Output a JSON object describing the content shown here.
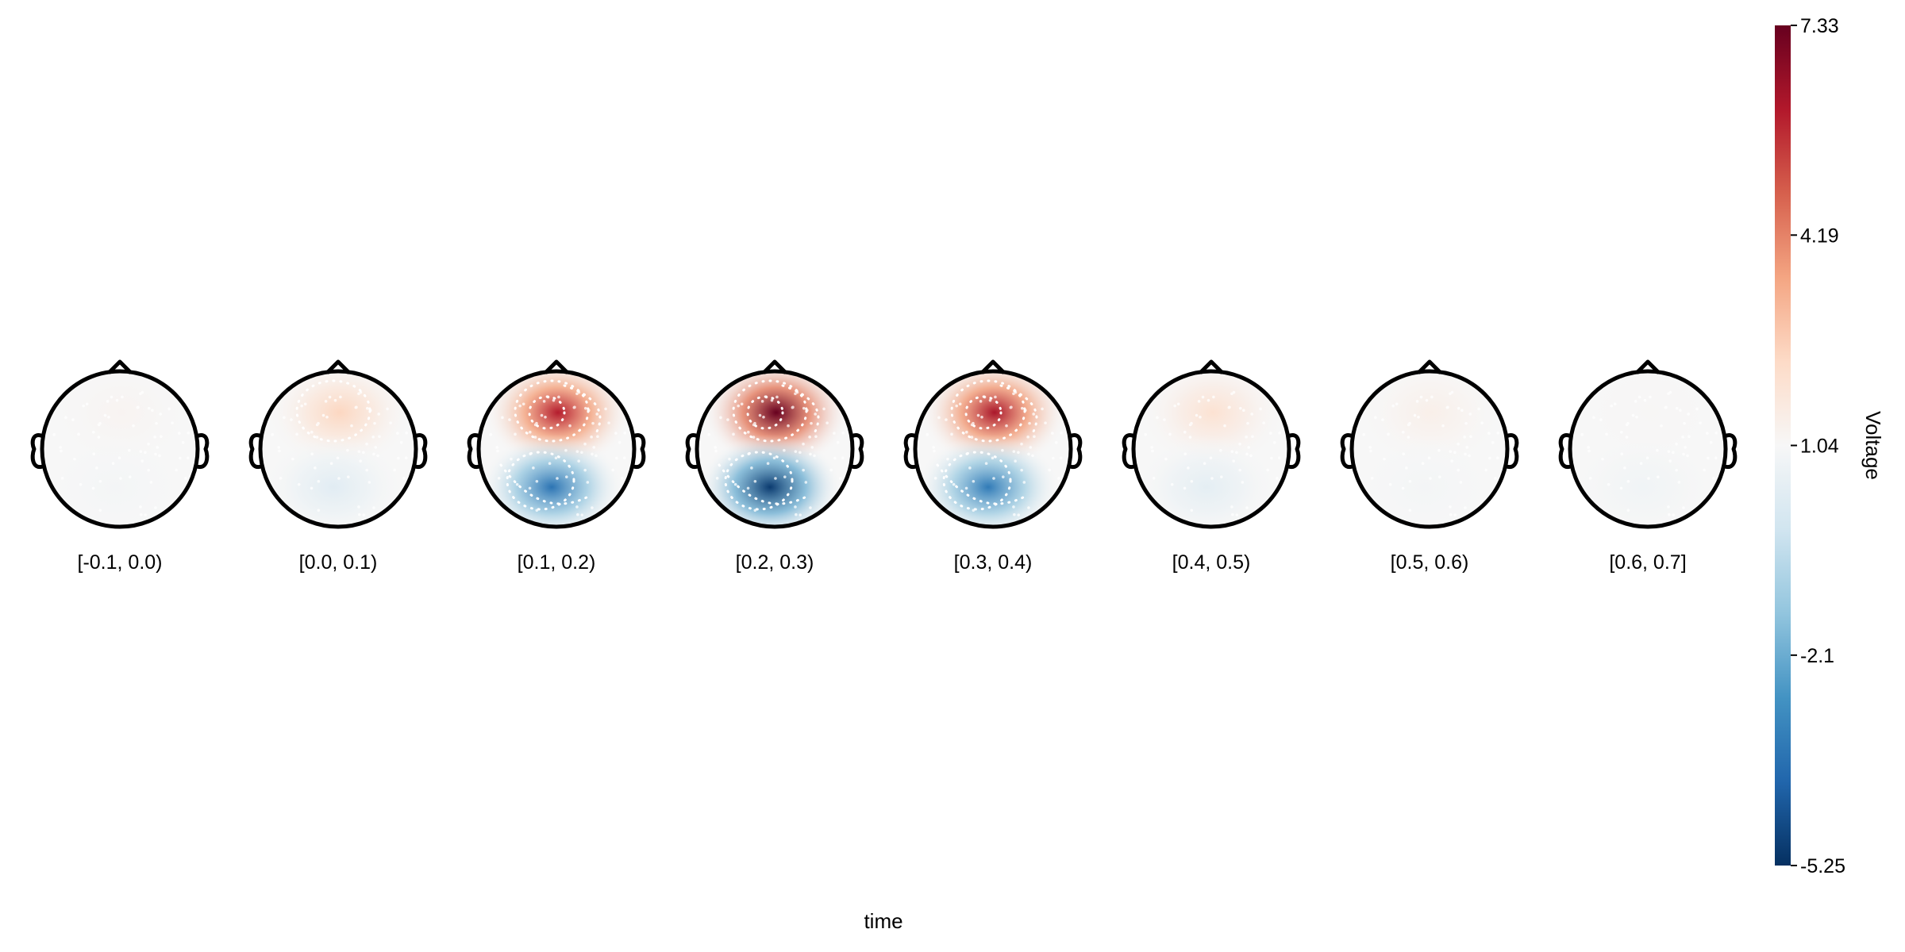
{
  "chart_data": {
    "type": "heatmap",
    "subtype": "topoplot-series",
    "xlabel": "time",
    "colorbar": {
      "label": "Voltage",
      "limits": [
        -5.25,
        7.33
      ],
      "ticks": [
        "7.33",
        "4.19",
        "1.04",
        "-2.1",
        "-5.25"
      ],
      "tick_values": [
        7.33,
        4.19,
        1.04,
        -2.1,
        -5.25
      ],
      "colormap": "RdBu_r",
      "colors": [
        "#053061",
        "#2166ac",
        "#4393c3",
        "#92c5de",
        "#d1e5f0",
        "#f7f7f7",
        "#fddbc7",
        "#f4a582",
        "#d6604d",
        "#b2182b",
        "#67001f"
      ]
    },
    "panels": [
      {
        "label": "[-0.1, 0.0)",
        "peak_pos": 1.2,
        "peak_neg": 0.9,
        "baseline": 1.04
      },
      {
        "label": "[0.0, 0.1)",
        "peak_pos": 2.4,
        "peak_neg": 0.3,
        "baseline": 1.04
      },
      {
        "label": "[0.1, 0.2)",
        "peak_pos": 6.0,
        "peak_neg": -3.6,
        "baseline": 1.04
      },
      {
        "label": "[0.2, 0.3)",
        "peak_pos": 7.33,
        "peak_neg": -5.0,
        "baseline": 1.04
      },
      {
        "label": "[0.3, 0.4)",
        "peak_pos": 6.2,
        "peak_neg": -3.4,
        "baseline": 1.04
      },
      {
        "label": "[0.4, 0.5)",
        "peak_pos": 2.0,
        "peak_neg": 0.4,
        "baseline": 1.04
      },
      {
        "label": "[0.5, 0.6)",
        "peak_pos": 1.4,
        "peak_neg": 0.9,
        "baseline": 1.04
      },
      {
        "label": "[0.6, 0.7]",
        "peak_pos": 1.1,
        "peak_neg": 0.8,
        "baseline": 1.04
      }
    ],
    "head_outline_color": "#000000",
    "electrode_marker_color": "#ffffff"
  }
}
